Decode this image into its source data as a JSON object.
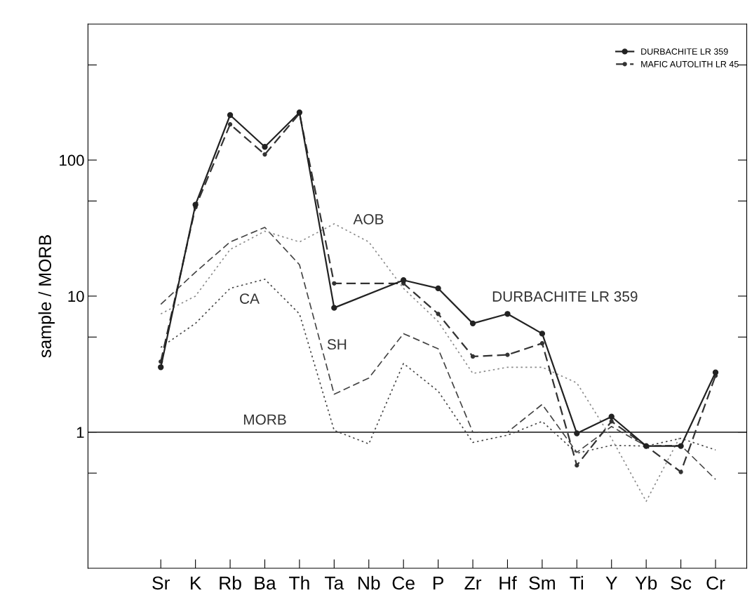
{
  "chart_data": {
    "type": "line",
    "ylabel": "sample / MORB",
    "log": "y",
    "ylim": [
      0.1,
      1000
    ],
    "yticks": [
      {
        "value": 0.5,
        "label": null
      },
      1,
      {
        "value": 5,
        "label": null
      },
      10,
      {
        "value": 50,
        "label": null
      },
      100,
      {
        "value": 500,
        "label": null
      }
    ],
    "categories": [
      "Sr",
      "K",
      "Rb",
      "Ba",
      "Th",
      "Ta",
      "Nb",
      "Ce",
      "P",
      "Zr",
      "Hf",
      "Sm",
      "Ti",
      "Y",
      "Yb",
      "Sc",
      "Cr"
    ],
    "series": [
      {
        "name": "DURBACHITE LR 359",
        "color": "#222222",
        "line_style": "solid",
        "marker": "circle",
        "values": [
          3.0,
          47,
          214,
          125,
          224,
          8.2,
          null,
          13.1,
          11.4,
          6.3,
          7.4,
          5.3,
          0.98,
          1.3,
          0.79,
          0.79,
          2.75
        ]
      },
      {
        "name": "MAFIC AUTOLITH LR 45",
        "color": "#333333",
        "line_style": "dashed",
        "marker": "circle",
        "values": [
          3.3,
          45,
          183,
          110,
          220,
          12.4,
          null,
          12.4,
          7.4,
          3.6,
          3.7,
          4.5,
          0.57,
          1.2,
          0.79,
          0.51,
          2.6
        ]
      },
      {
        "color": "#8a8a8a",
        "line_style": "dotted",
        "marker": "none",
        "values": [
          7.4,
          10,
          22,
          30,
          25,
          34,
          25,
          11.4,
          6.5,
          2.7,
          3.0,
          3.0,
          2.3,
          0.9,
          0.31,
          0.95,
          null
        ]
      },
      {
        "color": "#444444",
        "line_style": "dashed",
        "marker": "none",
        "values": [
          8.7,
          15,
          25,
          32,
          17,
          1.9,
          2.5,
          5.3,
          4.1,
          1.0,
          1.0,
          1.6,
          0.71,
          1.1,
          0.79,
          0.8,
          0.45
        ]
      },
      {
        "color": "#444444",
        "line_style": "dotted",
        "marker": "none",
        "values": [
          4.2,
          6.3,
          11.4,
          13.3,
          7.4,
          1.03,
          0.82,
          3.2,
          2.0,
          0.84,
          0.95,
          1.2,
          0.7,
          0.8,
          0.79,
          0.9,
          0.74
        ]
      }
    ],
    "ref_lines": [
      {
        "axis": "y",
        "value": 1,
        "label": "MORB",
        "color": "#333333",
        "line_style": "solid"
      }
    ],
    "annotations": [
      "AOB",
      "CA",
      "SH",
      "DURBACHITE LR 359"
    ],
    "legend": "top right",
    "grid": false
  }
}
